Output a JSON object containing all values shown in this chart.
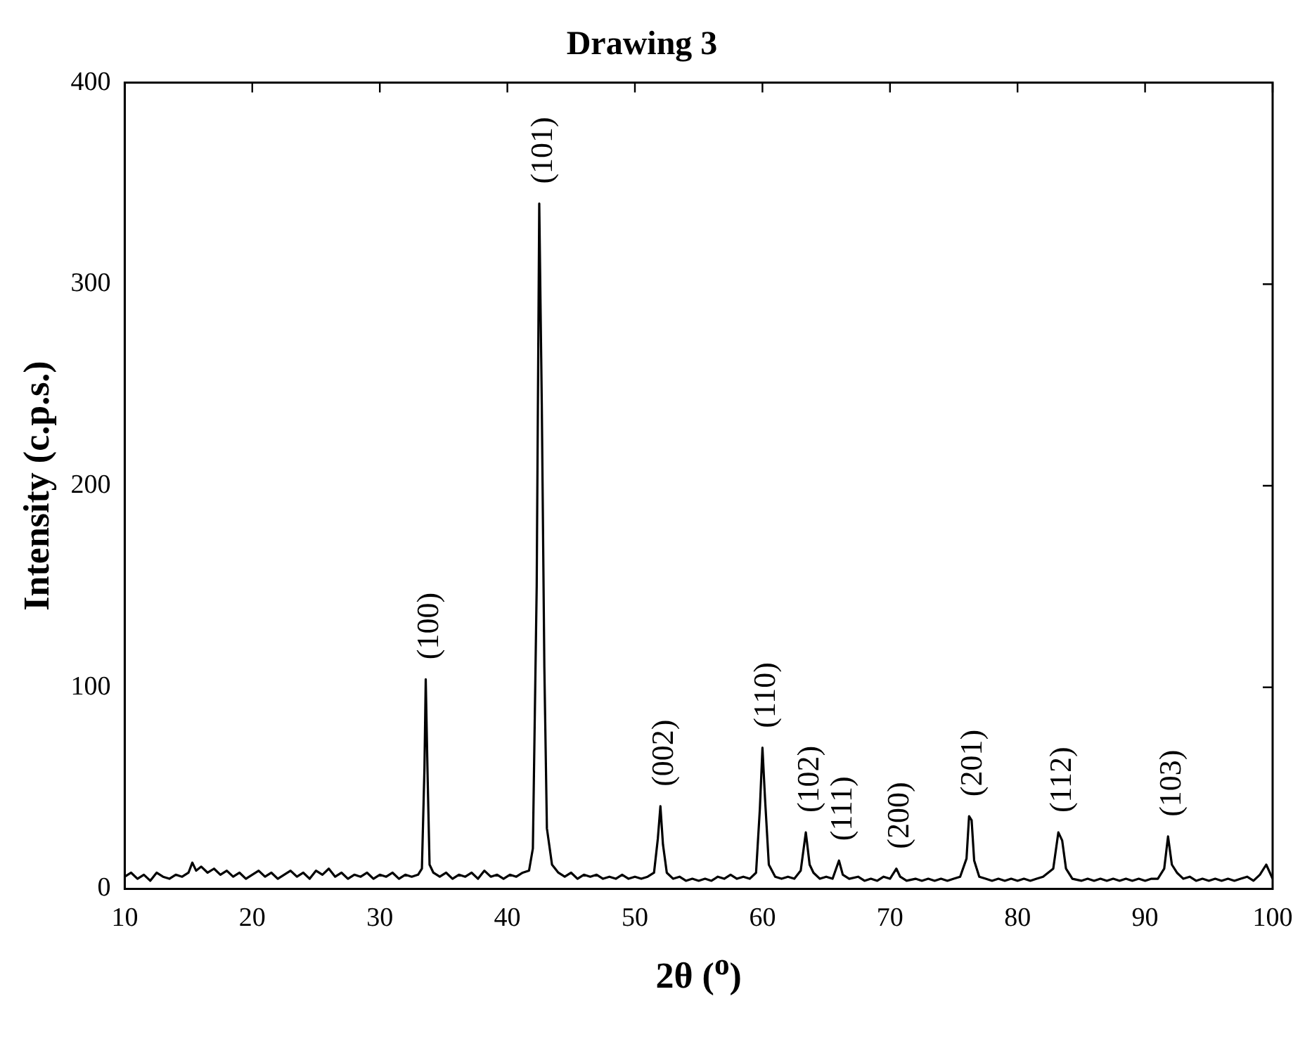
{
  "chart_data": {
    "type": "line",
    "title": "Drawing 3",
    "xlabel": "2θ ($^{o}$)",
    "ylabel": "Intensity (c.p.s.)",
    "xlim": [
      10,
      100
    ],
    "xticks": [
      10,
      20,
      30,
      40,
      50,
      60,
      70,
      80,
      90,
      100
    ],
    "ylim": [
      0,
      400
    ],
    "yticks": [
      0,
      100,
      200,
      300,
      400
    ],
    "grid": false,
    "legend": false,
    "marker": "none",
    "line_style": "solid",
    "annotations": [
      {
        "text": "(100)",
        "x": 33.6,
        "y": 104
      },
      {
        "text": "(101)",
        "x": 42.5,
        "y": 340
      },
      {
        "text": "(002)",
        "x": 52,
        "y": 41
      },
      {
        "text": "(110)",
        "x": 60,
        "y": 70
      },
      {
        "text": "(102)",
        "x": 63.4,
        "y": 28
      },
      {
        "text": "(111)",
        "x": 66,
        "y": 14
      },
      {
        "text": "(200)",
        "x": 70.5,
        "y": 10
      },
      {
        "text": "(201)",
        "x": 76.2,
        "y": 36
      },
      {
        "text": "(112)",
        "x": 83.2,
        "y": 28
      },
      {
        "text": "(103)",
        "x": 91.8,
        "y": 26
      }
    ],
    "series": [
      {
        "color": "#000000",
        "x": [
          10,
          10.5,
          11,
          11.5,
          12,
          12.5,
          13,
          13.5,
          14,
          14.5,
          15,
          15.3,
          15.6,
          16,
          16.5,
          17,
          17.5,
          18,
          18.5,
          19,
          19.5,
          20,
          20.5,
          21,
          21.5,
          22,
          22.5,
          23,
          23.5,
          24,
          24.5,
          25,
          25.5,
          26,
          26.5,
          27,
          27.5,
          28,
          28.5,
          29,
          29.5,
          30,
          30.5,
          31,
          31.5,
          32,
          32.5,
          33,
          33.3,
          33.5,
          33.6,
          33.75,
          33.9,
          34.2,
          34.7,
          35.2,
          35.7,
          36.2,
          36.7,
          37.2,
          37.7,
          38.2,
          38.7,
          39.2,
          39.7,
          40.2,
          40.7,
          41.2,
          41.7,
          42.0,
          42.3,
          42.5,
          42.7,
          42.9,
          43.1,
          43.5,
          44,
          44.5,
          45,
          45.5,
          46,
          46.5,
          47,
          47.5,
          48,
          48.5,
          49,
          49.5,
          50,
          50.5,
          51,
          51.5,
          51.8,
          52.0,
          52.2,
          52.5,
          53,
          53.5,
          54,
          54.5,
          55,
          55.5,
          56,
          56.5,
          57,
          57.5,
          58,
          58.5,
          59,
          59.5,
          59.8,
          60.0,
          60.2,
          60.5,
          61,
          61.5,
          62,
          62.5,
          63,
          63.4,
          63.7,
          64,
          64.5,
          65,
          65.5,
          66,
          66.3,
          66.8,
          67.5,
          68,
          68.5,
          69,
          69.5,
          70,
          70.5,
          70.8,
          71.3,
          72,
          72.5,
          73,
          73.5,
          74,
          74.5,
          75,
          75.5,
          76,
          76.2,
          76.4,
          76.6,
          77,
          77.5,
          78,
          78.5,
          79,
          79.5,
          80,
          80.5,
          81,
          81.5,
          82,
          82.8,
          83.2,
          83.5,
          83.8,
          84.3,
          85,
          85.5,
          86,
          86.5,
          87,
          87.5,
          88,
          88.5,
          89,
          89.5,
          90,
          90.5,
          91,
          91.5,
          91.8,
          92.1,
          92.5,
          93,
          93.5,
          94,
          94.5,
          95,
          95.5,
          96,
          96.5,
          97,
          97.5,
          98,
          98.5,
          99,
          99.5,
          100
        ],
        "values": [
          6,
          8,
          5,
          7,
          4,
          8,
          6,
          5,
          7,
          6,
          8,
          13,
          9,
          11,
          8,
          10,
          7,
          9,
          6,
          8,
          5,
          7,
          9,
          6,
          8,
          5,
          7,
          9,
          6,
          8,
          5,
          9,
          7,
          10,
          6,
          8,
          5,
          7,
          6,
          8,
          5,
          7,
          6,
          8,
          5,
          7,
          6,
          7,
          10,
          60,
          104,
          55,
          12,
          8,
          6,
          8,
          5,
          7,
          6,
          8,
          5,
          9,
          6,
          7,
          5,
          7,
          6,
          8,
          9,
          20,
          150,
          340,
          240,
          110,
          30,
          12,
          8,
          6,
          8,
          5,
          7,
          6,
          7,
          5,
          6,
          5,
          7,
          5,
          6,
          5,
          6,
          8,
          25,
          41,
          22,
          8,
          5,
          6,
          4,
          5,
          4,
          5,
          4,
          6,
          5,
          7,
          5,
          6,
          5,
          8,
          40,
          70,
          45,
          12,
          6,
          5,
          6,
          5,
          9,
          28,
          12,
          8,
          5,
          6,
          5,
          14,
          7,
          5,
          6,
          4,
          5,
          4,
          6,
          5,
          10,
          6,
          4,
          5,
          4,
          5,
          4,
          5,
          4,
          5,
          6,
          15,
          36,
          34,
          14,
          6,
          5,
          4,
          5,
          4,
          5,
          4,
          5,
          4,
          5,
          6,
          10,
          28,
          24,
          10,
          5,
          4,
          5,
          4,
          5,
          4,
          5,
          4,
          5,
          4,
          5,
          4,
          5,
          5,
          10,
          26,
          12,
          8,
          5,
          6,
          4,
          5,
          4,
          5,
          4,
          5,
          4,
          5,
          6,
          4,
          7,
          12,
          5
        ]
      }
    ]
  }
}
